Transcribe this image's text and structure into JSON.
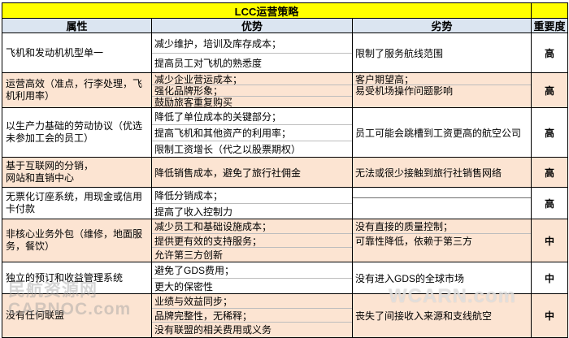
{
  "title": "LCC运营策略",
  "colors": {
    "title_bg": "#ffff00",
    "header_bg": "#dbe5f1",
    "alt_row_bg": "#fce4d2",
    "border": "#000000",
    "line_separator": "#bdbdbd"
  },
  "table": {
    "headers": [
      "属性",
      "优势",
      "劣势",
      "重要度"
    ],
    "rows": [
      {
        "attribute": "飞机和发动机机型单一",
        "advantages": [
          "减少维护，培训及库存成本；",
          "提高员工对飞机的熟悉度"
        ],
        "disadvantages": [
          "限制了服务航线范围"
        ],
        "importance": "高"
      },
      {
        "attribute": "运营高效（准点，行李处理，飞机利用率）",
        "advantages": [
          "减少企业营运成本；",
          "强化品牌形象；",
          "鼓励旅客重复购买"
        ],
        "disadvantages": [
          "客户期望高；",
          "易受机场操作问题影响"
        ],
        "importance": "高"
      },
      {
        "attribute": "以生产力基础的劳动协议（优选未参加工会的员工）",
        "advantages": [
          "降低了单位成本的关键部分；",
          "提高飞机和其他资产的利用率；",
          "限制工资增长（代之以股票期权）"
        ],
        "disadvantages": [
          "员工可能会跳槽到工资更高的航空公司"
        ],
        "importance": "高"
      },
      {
        "attribute": "基于互联网的分销，\n网站和直销中心",
        "advantages": [
          "降低销售成本，避免了旅行社佣金"
        ],
        "disadvantages": [
          "无法或很少接触到旅行社销售网络"
        ],
        "importance": "高"
      },
      {
        "attribute": "无票化订座系统，用现金或信用卡付款",
        "advantages": [
          "降低分销成本；",
          "提高了收入控制力"
        ],
        "disadvantages": [],
        "importance": "高"
      },
      {
        "attribute": "非核心业务外包（维修，地面服务，餐饮）",
        "advantages": [
          "减少员工和基础设施成本；",
          "提供更有效的支持服务；",
          "允许第三方创新"
        ],
        "disadvantages": [
          "没有直接的质量控制；",
          "可靠性降低，依赖于第三方"
        ],
        "importance": "中"
      },
      {
        "attribute": "独立的预订和收益管理系统",
        "advantages": [
          "避免了GDS费用；",
          "更大的保密性"
        ],
        "disadvantages": [
          "没有进入GDS的全球市场"
        ],
        "importance": "中"
      },
      {
        "attribute": "没有任何联盟",
        "advantages": [
          "业绩与效益同步；",
          "品牌完整性，无稀释；",
          "没有联盟的相关费用或义务"
        ],
        "disadvantages": [
          "丧失了间接收入来源和支线航空"
        ],
        "importance": "中"
      }
    ]
  },
  "watermarks": {
    "left_line1": "民航资源网",
    "left_line2": "CARNOC.com",
    "right": "WCARN.com"
  }
}
